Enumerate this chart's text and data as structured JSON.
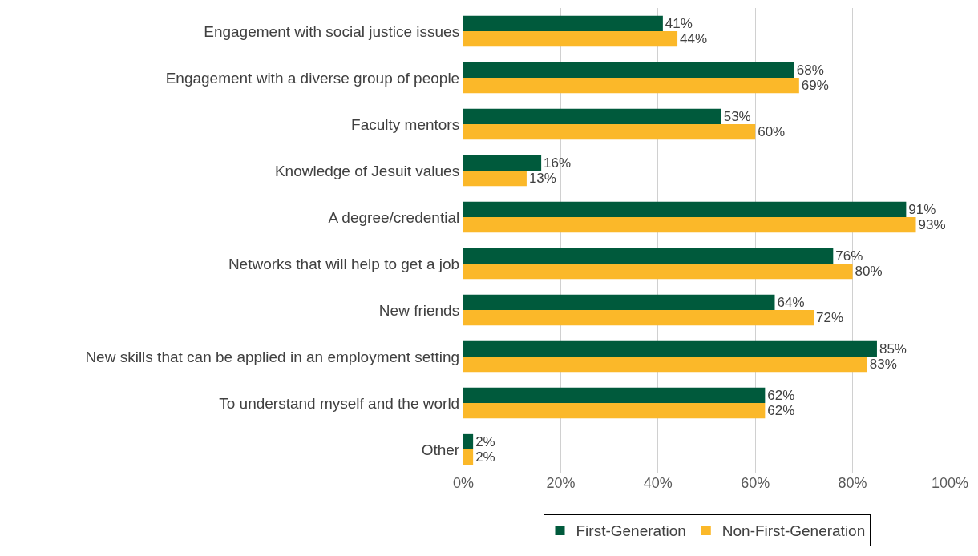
{
  "chart_data": {
    "type": "bar",
    "orientation": "horizontal",
    "categories": [
      "Engagement with social justice issues",
      "Engagement with a diverse group of people",
      "Faculty mentors",
      "Knowledge of Jesuit values",
      "A degree/credential",
      "Networks that will help to get a job",
      "New friends",
      "New skills that can be applied in an employment setting",
      "To understand myself and the world",
      "Other"
    ],
    "series": [
      {
        "name": "First-Generation",
        "color": "#005a3c",
        "values": [
          41,
          68,
          53,
          16,
          91,
          76,
          64,
          85,
          62,
          2
        ],
        "value_labels": [
          "41%",
          "68%",
          "53%",
          "16%",
          "91%",
          "76%",
          "64%",
          "85%",
          "62%",
          "2%"
        ]
      },
      {
        "name": "Non-First-Generation",
        "color": "#fbb829",
        "values": [
          44,
          69,
          60,
          13,
          93,
          80,
          72,
          83,
          62,
          2
        ],
        "value_labels": [
          "44%",
          "69%",
          "60%",
          "13%",
          "93%",
          "80%",
          "72%",
          "83%",
          "62%",
          "2%"
        ]
      }
    ],
    "xlim": [
      0,
      100
    ],
    "xticks": [
      {
        "value": 0,
        "label": "0%"
      },
      {
        "value": 20,
        "label": "20%"
      },
      {
        "value": 40,
        "label": "40%"
      },
      {
        "value": 60,
        "label": "60%"
      },
      {
        "value": 80,
        "label": "80%"
      },
      {
        "value": 100,
        "label": "100%"
      }
    ],
    "grid": "x",
    "legend": "bottom"
  }
}
